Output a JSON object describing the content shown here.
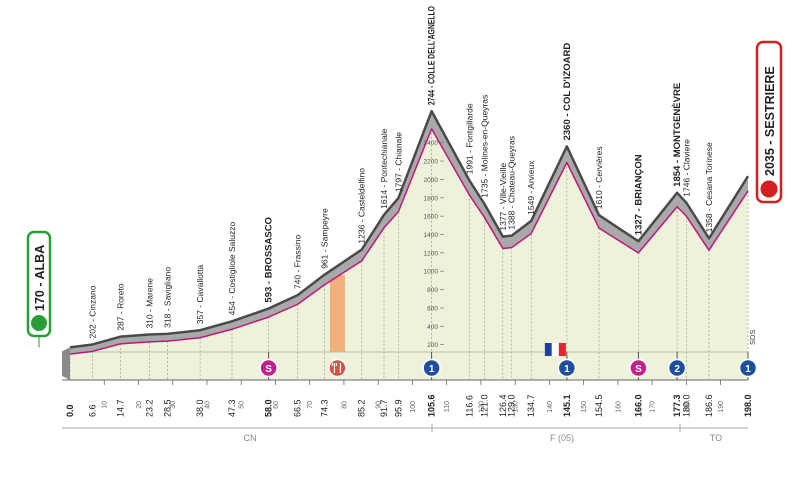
{
  "chart_data": {
    "type": "area",
    "x": [
      {
        "value": 0,
        "label": "0.0"
      },
      6.6,
      14.7,
      23.2,
      28.5,
      {
        "value": 38,
        "label": "38.0"
      },
      47.3,
      {
        "value": 58,
        "label": "58.0"
      },
      66.5,
      74.3,
      85.2,
      91.7,
      95.9,
      105.6,
      116.6,
      {
        "value": 121,
        "label": "121.0"
      },
      126.4,
      {
        "value": 129,
        "label": "129.0"
      },
      134.7,
      145.1,
      154.5,
      {
        "value": 166,
        "label": "166.0"
      },
      177.3,
      {
        "value": 180,
        "label": "180.0"
      },
      186.6,
      {
        "value": 198,
        "label": "198.0"
      }
    ],
    "values": [
      170,
      202,
      287,
      310,
      318,
      357,
      454,
      593,
      740,
      961,
      1236,
      1614,
      1797,
      2744,
      1991,
      1735,
      1377,
      1388,
      1549,
      2360,
      1610,
      1327,
      1854,
      1746,
      1358,
      2035
    ],
    "value_labels": [
      "170 - ALBA",
      "202 - Cinzano",
      "287 - Roreto",
      "310 - Marene",
      "318 - Savigliano",
      "357 - Cavallotta",
      "454 - Costigliole Saluzzo",
      "593 - BROSSASCO",
      "740 - Frassino",
      "961 - Sampeyre",
      "1236 - Casteldelfino",
      "1614 - Pontechianale",
      "1797 - Chianale",
      "2744 - COLLE DELL'AGNELLO",
      "1991 - Fontgillarde",
      "1735 - Molines-en-Queyras",
      "1377 - Ville-Vieille",
      "1388 - Chateau-Queyras",
      "1549 - Arvieux",
      "2360 - COL D'IZOARD",
      "1610 - Cervières",
      "1327 - BRIANÇON",
      "1854 - MONTGENÈVRE",
      "1746 - Claviere",
      "1358 - Cesana Torinese",
      "2035 - SESTRIERE"
    ],
    "emphasis": [
      true,
      false,
      false,
      false,
      false,
      false,
      false,
      true,
      false,
      false,
      false,
      false,
      false,
      true,
      false,
      false,
      false,
      false,
      false,
      true,
      false,
      true,
      true,
      false,
      false,
      true
    ],
    "xlim": [
      0,
      198
    ],
    "ylim": [
      0,
      2800
    ],
    "xticks": [
      10,
      20,
      30,
      40,
      50,
      60,
      70,
      80,
      90,
      100,
      110,
      120,
      130,
      140,
      150,
      160,
      170,
      180,
      190
    ],
    "yticks": [
      200,
      400,
      600,
      800,
      1000,
      1200,
      1400,
      1600,
      1800,
      2000,
      2200,
      2400
    ],
    "markers": [
      {
        "km": 58,
        "label": "S",
        "color": "#c2208a"
      },
      {
        "km": 105.6,
        "label": "1",
        "color": "#1f4e9c"
      },
      {
        "km": 145.1,
        "label": "1",
        "color": "#1f4e9c"
      },
      {
        "km": 166,
        "label": "S",
        "color": "#c2208a"
      },
      {
        "km": 177.3,
        "label": "2",
        "color": "#1f4e9c"
      },
      {
        "km": 198,
        "label": "1",
        "color": "#1f4e9c"
      }
    ],
    "feed_zone": {
      "from": 75.9,
      "to": 80.3,
      "color": "#f2a36a"
    },
    "border_km": 141.6,
    "regions": [
      "CN",
      "F (05)",
      "TO"
    ],
    "finish_note": "SDS"
  }
}
